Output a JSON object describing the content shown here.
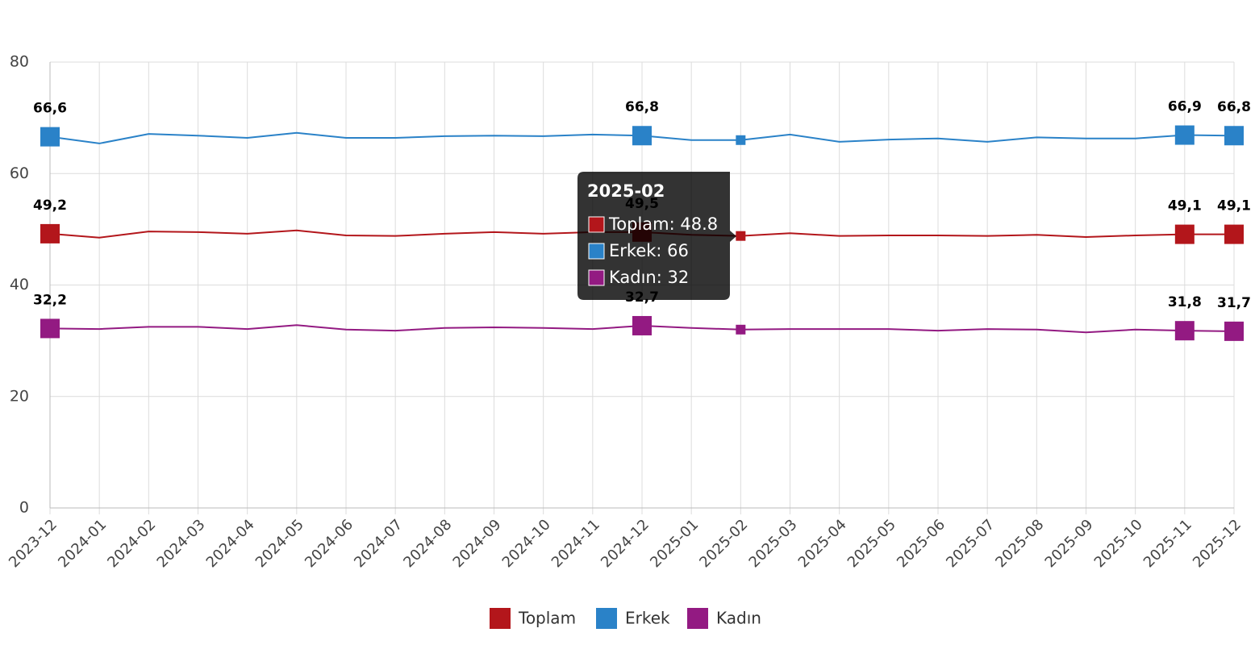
{
  "chart_data": {
    "type": "line",
    "categories": [
      "2023-12",
      "2024-01",
      "2024-02",
      "2024-03",
      "2024-04",
      "2024-05",
      "2024-06",
      "2024-07",
      "2024-08",
      "2024-09",
      "2024-10",
      "2024-11",
      "2024-12",
      "2025-01",
      "2025-02",
      "2025-03",
      "2025-04",
      "2025-05",
      "2025-06",
      "2025-07",
      "2025-08",
      "2025-09",
      "2025-10",
      "2025-11",
      "2025-12"
    ],
    "series": [
      {
        "name": "Toplam",
        "color": "#b3161b",
        "values": [
          49.2,
          48.5,
          49.6,
          49.5,
          49.2,
          49.8,
          48.9,
          48.8,
          49.2,
          49.5,
          49.2,
          49.5,
          49.5,
          49.0,
          48.8,
          49.3,
          48.8,
          48.9,
          48.9,
          48.8,
          49.0,
          48.6,
          48.9,
          49.1,
          49.1
        ],
        "value_labels": [
          "49,2",
          null,
          null,
          null,
          null,
          null,
          null,
          null,
          null,
          null,
          null,
          null,
          "49,5",
          null,
          null,
          null,
          null,
          null,
          null,
          null,
          null,
          null,
          null,
          "49,1",
          "49,1"
        ]
      },
      {
        "name": "Erkek",
        "color": "#2a82c8",
        "values": [
          66.6,
          65.4,
          67.1,
          66.8,
          66.4,
          67.3,
          66.4,
          66.4,
          66.7,
          66.8,
          66.7,
          67.0,
          66.8,
          66.0,
          66,
          67.0,
          65.7,
          66.1,
          66.3,
          65.7,
          66.5,
          66.3,
          66.3,
          66.9,
          66.8
        ],
        "value_labels": [
          "66,6",
          null,
          null,
          null,
          null,
          null,
          null,
          null,
          null,
          null,
          null,
          null,
          "66,8",
          null,
          null,
          null,
          null,
          null,
          null,
          null,
          null,
          null,
          null,
          "66,9",
          "66,8"
        ]
      },
      {
        "name": "Kadın",
        "color": "#931a82",
        "values": [
          32.2,
          32.1,
          32.5,
          32.5,
          32.1,
          32.8,
          32.0,
          31.8,
          32.3,
          32.4,
          32.3,
          32.1,
          32.7,
          32.3,
          32,
          32.1,
          32.1,
          32.1,
          31.8,
          32.1,
          32.0,
          31.5,
          32.0,
          31.8,
          31.7
        ],
        "value_labels": [
          "32,2",
          null,
          null,
          null,
          null,
          null,
          null,
          null,
          null,
          null,
          null,
          null,
          "32,7",
          null,
          null,
          null,
          null,
          null,
          null,
          null,
          null,
          null,
          null,
          "31,8",
          "31,7"
        ]
      }
    ],
    "ylim": [
      0,
      80
    ],
    "yticks": [
      0,
      20,
      40,
      60,
      80
    ],
    "grid": true,
    "legend": "bottom",
    "tooltip": {
      "title": "2025-02",
      "lines": [
        "Toplam: 48.8",
        "Erkek: 66",
        "Kadın: 32"
      ]
    }
  }
}
